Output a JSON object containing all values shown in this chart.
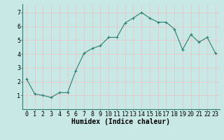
{
  "x": [
    0,
    1,
    2,
    3,
    4,
    5,
    6,
    7,
    8,
    9,
    10,
    11,
    12,
    13,
    14,
    15,
    16,
    17,
    18,
    19,
    20,
    21,
    22,
    23
  ],
  "y": [
    2.2,
    1.1,
    1.0,
    0.85,
    1.2,
    1.2,
    2.8,
    4.05,
    4.4,
    4.6,
    5.2,
    5.2,
    6.25,
    6.6,
    7.0,
    6.6,
    6.3,
    6.3,
    5.8,
    4.3,
    5.4,
    4.85,
    5.2,
    4.05
  ],
  "line_color": "#2e7d6e",
  "marker": "+",
  "bg_color": "#c8e8e5",
  "grid_color": "#e8c8c8",
  "xlabel": "Humidex (Indice chaleur)",
  "xlabel_fontsize": 7,
  "tick_fontsize": 6,
  "xlim": [
    -0.5,
    23.5
  ],
  "ylim": [
    0,
    7.6
  ],
  "yticks": [
    1,
    2,
    3,
    4,
    5,
    6,
    7
  ],
  "xticks": [
    0,
    1,
    2,
    3,
    4,
    5,
    6,
    7,
    8,
    9,
    10,
    11,
    12,
    13,
    14,
    15,
    16,
    17,
    18,
    19,
    20,
    21,
    22,
    23
  ]
}
